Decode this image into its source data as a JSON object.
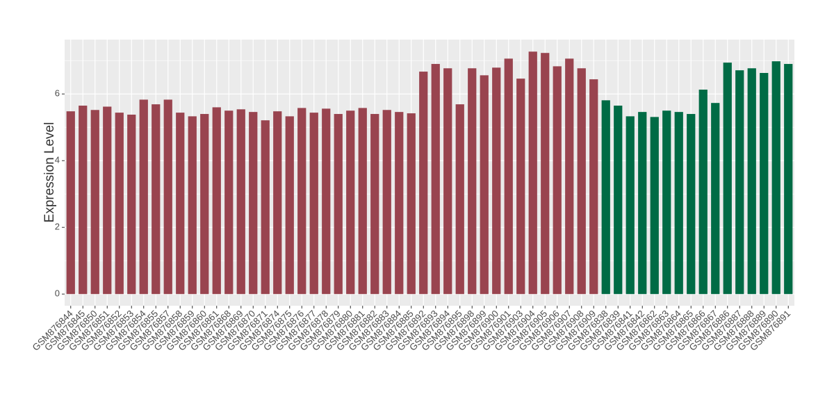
{
  "chart_data": {
    "type": "bar",
    "y_label": "Expression Level",
    "categories": [
      "GSM876844",
      "GSM876845",
      "GSM876850",
      "GSM876851",
      "GSM876852",
      "GSM876853",
      "GSM876854",
      "GSM876855",
      "GSM876857",
      "GSM876858",
      "GSM876859",
      "GSM876860",
      "GSM876861",
      "GSM876868",
      "GSM876869",
      "GSM876870",
      "GSM876871",
      "GSM876874",
      "GSM876875",
      "GSM876876",
      "GSM876877",
      "GSM876878",
      "GSM876879",
      "GSM876880",
      "GSM876881",
      "GSM876882",
      "GSM876883",
      "GSM876884",
      "GSM876885",
      "GSM876892",
      "GSM876893",
      "GSM876894",
      "GSM876895",
      "GSM876898",
      "GSM876899",
      "GSM876900",
      "GSM876901",
      "GSM876903",
      "GSM876904",
      "GSM876905",
      "GSM876906",
      "GSM876907",
      "GSM876908",
      "GSM876909",
      "GSM876838",
      "GSM876839",
      "GSM876841",
      "GSM876842",
      "GSM876862",
      "GSM876863",
      "GSM876864",
      "GSM876865",
      "GSM876866",
      "GSM876867",
      "GSM876886",
      "GSM876887",
      "GSM876888",
      "GSM876889",
      "GSM876890",
      "GSM876891"
    ],
    "values": [
      5.48,
      5.65,
      5.52,
      5.62,
      5.44,
      5.38,
      5.83,
      5.69,
      5.83,
      5.44,
      5.33,
      5.4,
      5.6,
      5.5,
      5.54,
      5.46,
      5.21,
      5.48,
      5.33,
      5.58,
      5.44,
      5.56,
      5.4,
      5.5,
      5.58,
      5.4,
      5.52,
      5.46,
      5.42,
      6.67,
      6.9,
      6.77,
      5.69,
      6.77,
      6.56,
      6.79,
      7.06,
      6.46,
      7.27,
      7.23,
      6.83,
      7.06,
      6.77,
      6.44,
      5.81,
      5.65,
      5.33,
      5.46,
      5.31,
      5.5,
      5.46,
      5.4,
      6.13,
      5.73,
      6.94,
      6.71,
      6.77,
      6.63,
      6.98,
      6.9
    ],
    "bar_colors": [
      "#99444f",
      "#99444f",
      "#99444f",
      "#99444f",
      "#99444f",
      "#99444f",
      "#99444f",
      "#99444f",
      "#99444f",
      "#99444f",
      "#99444f",
      "#99444f",
      "#99444f",
      "#99444f",
      "#99444f",
      "#99444f",
      "#99444f",
      "#99444f",
      "#99444f",
      "#99444f",
      "#99444f",
      "#99444f",
      "#99444f",
      "#99444f",
      "#99444f",
      "#99444f",
      "#99444f",
      "#99444f",
      "#99444f",
      "#99444f",
      "#99444f",
      "#99444f",
      "#99444f",
      "#99444f",
      "#99444f",
      "#99444f",
      "#99444f",
      "#99444f",
      "#99444f",
      "#99444f",
      "#99444f",
      "#99444f",
      "#99444f",
      "#99444f",
      "#006b45",
      "#006b45",
      "#006b45",
      "#006b45",
      "#006b45",
      "#006b45",
      "#006b45",
      "#006b45",
      "#006b45",
      "#006b45",
      "#006b45",
      "#006b45",
      "#006b45",
      "#006b45",
      "#006b45",
      "#006b45"
    ],
    "ylim": [
      -0.35,
      7.63
    ],
    "yticks": [
      0,
      2,
      4,
      6
    ],
    "grid": true
  }
}
